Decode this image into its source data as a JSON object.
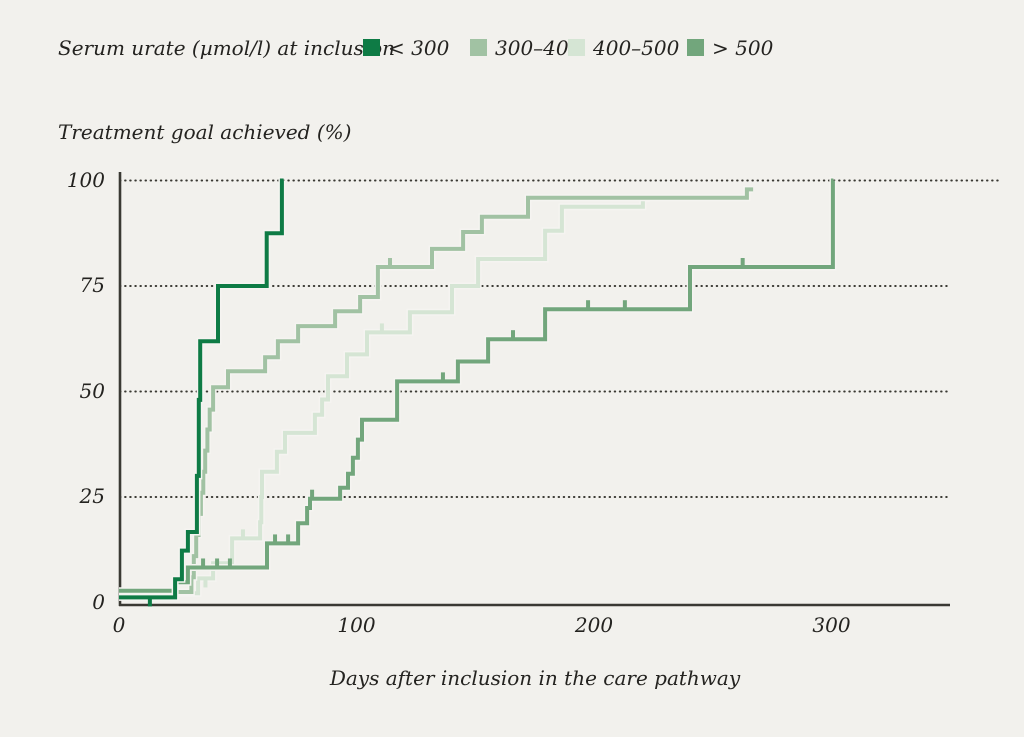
{
  "legend": {
    "title": "Serum urate (µmol/l) at inclusion",
    "items": [
      {
        "label": "< 300",
        "color": "#0e7b45"
      },
      {
        "label": "300–400",
        "color": "#a1c2a3"
      },
      {
        "label": "400–500",
        "color": "#d5e5d4"
      },
      {
        "label": "> 500",
        "color": "#72a67c"
      }
    ]
  },
  "y_axis": {
    "title": "Treatment goal achieved (%)",
    "ticks": [
      100,
      75,
      50,
      25,
      0
    ]
  },
  "x_axis": {
    "title": "Days after inclusion in the care pathway",
    "ticks": [
      0,
      100,
      200,
      300
    ]
  },
  "colors": {
    "background": "#f2f1ed",
    "axis": "#3a3933",
    "grid_dots": "#3a3933",
    "text": "#242320",
    "line_halo": "#f5f4f1"
  },
  "chart_data": {
    "type": "line",
    "subtype": "kaplan-meier-step",
    "title": "",
    "xlabel": "Days after inclusion in the care pathway",
    "ylabel": "Treatment goal achieved (%)",
    "xlim": [
      0,
      350
    ],
    "ylim": [
      0,
      100
    ],
    "gridlines_pct": [
      100,
      75,
      50,
      25
    ],
    "grid_style": "dotted",
    "legend_position": "top",
    "series": [
      {
        "name": "< 300",
        "color": "#0e7b45",
        "points": [
          [
            0,
            1.2
          ],
          [
            23.6,
            5.5
          ],
          [
            26.5,
            12.3
          ],
          [
            29,
            16.7
          ],
          [
            32.8,
            30
          ],
          [
            33.6,
            48
          ],
          [
            34.2,
            61.9
          ],
          [
            41.7,
            75
          ],
          [
            62.2,
            87.5
          ],
          [
            68.6,
            100
          ]
        ],
        "end_day": 69.3,
        "censors": [
          {
            "day": 13,
            "pct": 1.2,
            "dir": "down"
          }
        ]
      },
      {
        "name": "300–400",
        "color": "#a1c2a3",
        "points": [
          [
            0,
            2.5
          ],
          [
            30.5,
            6
          ],
          [
            31.5,
            11
          ],
          [
            32.5,
            16
          ],
          [
            33.5,
            21
          ],
          [
            34.5,
            26
          ],
          [
            35.5,
            31
          ],
          [
            36.3,
            36
          ],
          [
            37.2,
            41
          ],
          [
            38.2,
            45.7
          ],
          [
            39.6,
            51
          ],
          [
            45.9,
            54.8
          ],
          [
            61.5,
            58.1
          ],
          [
            66.9,
            61.9
          ],
          [
            75.4,
            65.5
          ],
          [
            91,
            69
          ],
          [
            101.5,
            72.4
          ],
          [
            109,
            79.5
          ],
          [
            131.8,
            83.8
          ],
          [
            144.9,
            87.8
          ],
          [
            152.8,
            91.4
          ],
          [
            172.2,
            95.9
          ],
          [
            264.4,
            97.9
          ]
        ],
        "end_day": 267,
        "censors": [
          {
            "day": 114.1,
            "pct": 79.5,
            "dir": "up"
          }
        ]
      },
      {
        "name": "400–500",
        "color": "#d5e5d4",
        "points": [
          [
            0,
            2.2
          ],
          [
            33.3,
            5.7
          ],
          [
            39.6,
            9.3
          ],
          [
            47.6,
            15.2
          ],
          [
            59.4,
            19
          ],
          [
            59.9,
            25
          ],
          [
            60.2,
            31
          ],
          [
            66.5,
            35.7
          ],
          [
            69.9,
            40.2
          ],
          [
            82.5,
            44.5
          ],
          [
            85.5,
            48.1
          ],
          [
            88,
            53.6
          ],
          [
            96,
            58.8
          ],
          [
            104.4,
            64
          ],
          [
            122.5,
            68.8
          ],
          [
            140.2,
            75
          ],
          [
            151.2,
            81.4
          ],
          [
            179.4,
            88.1
          ],
          [
            186.5,
            93.8
          ],
          [
            220.6,
            95.7
          ]
        ],
        "end_day": 223.5,
        "censors": [
          {
            "day": 36.4,
            "pct": 5.7,
            "dir": "down"
          },
          {
            "day": 52.2,
            "pct": 15.2,
            "dir": "up"
          },
          {
            "day": 110.7,
            "pct": 64,
            "dir": "up"
          }
        ]
      },
      {
        "name": "> 500",
        "color": "#72a67c",
        "points": [
          [
            0,
            2.8
          ],
          [
            23.2,
            4.8
          ],
          [
            29,
            8.3
          ],
          [
            62.3,
            14
          ],
          [
            75.4,
            18.8
          ],
          [
            79.2,
            22.4
          ],
          [
            80.4,
            24.6
          ],
          [
            93.1,
            27.2
          ],
          [
            96.4,
            30.5
          ],
          [
            98.5,
            34.3
          ],
          [
            100.6,
            38.6
          ],
          [
            102.3,
            43.3
          ],
          [
            117.1,
            52.4
          ],
          [
            142.7,
            57.1
          ],
          [
            155.4,
            62.4
          ],
          [
            179.4,
            69.5
          ],
          [
            240.4,
            79.5
          ],
          [
            300.6,
            100
          ]
        ],
        "end_day": 300.8,
        "censors": [
          {
            "day": 35.4,
            "pct": 8.3,
            "dir": "up"
          },
          {
            "day": 41.3,
            "pct": 8.3,
            "dir": "up"
          },
          {
            "day": 46.7,
            "pct": 8.3,
            "dir": "up"
          },
          {
            "day": 65.7,
            "pct": 14,
            "dir": "up"
          },
          {
            "day": 71.2,
            "pct": 14,
            "dir": "up"
          },
          {
            "day": 81.3,
            "pct": 24.6,
            "dir": "up"
          },
          {
            "day": 136.4,
            "pct": 52.4,
            "dir": "up"
          },
          {
            "day": 165.9,
            "pct": 62.4,
            "dir": "up"
          },
          {
            "day": 197.5,
            "pct": 69.5,
            "dir": "up"
          },
          {
            "day": 213,
            "pct": 69.5,
            "dir": "up"
          },
          {
            "day": 262.6,
            "pct": 79.5,
            "dir": "up"
          }
        ]
      }
    ]
  }
}
